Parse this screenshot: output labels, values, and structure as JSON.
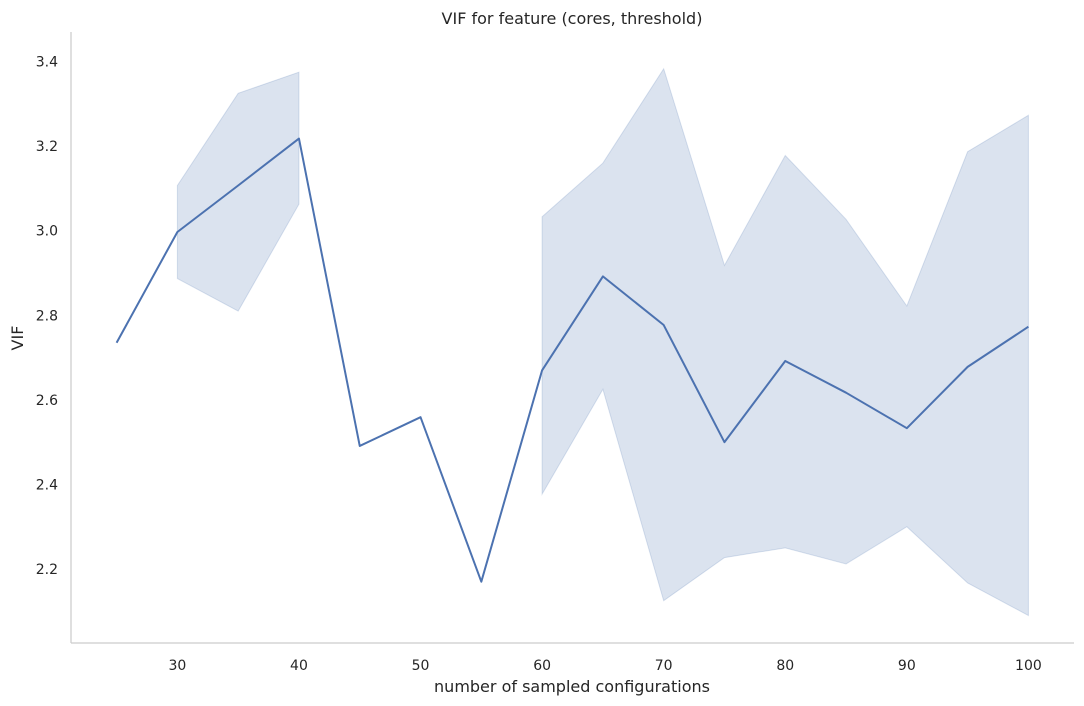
{
  "chart_data": {
    "type": "line",
    "title": "VIF for feature (cores, threshold)",
    "xlabel": "number of sampled configurations",
    "ylabel": "VIF",
    "xlim": [
      21.25,
      103.75
    ],
    "ylim": [
      2.025,
      3.47
    ],
    "xticks": [
      30,
      40,
      50,
      60,
      70,
      80,
      90,
      100
    ],
    "yticks": [
      2.2,
      2.4,
      2.6,
      2.8,
      3.0,
      3.2,
      3.4
    ],
    "ytick_labels": [
      "2.2",
      "2.4",
      "2.6",
      "2.8",
      "3.0",
      "3.2",
      "3.4"
    ],
    "grid": false,
    "series": [
      {
        "x": [
          25,
          30,
          35,
          40,
          45,
          50,
          55,
          60,
          65,
          70,
          75,
          80,
          85,
          90,
          95,
          100
        ],
        "values": [
          2.735,
          2.997,
          3.107,
          3.218,
          2.491,
          2.559,
          2.17,
          2.67,
          2.892,
          2.777,
          2.5,
          2.692,
          2.617,
          2.533,
          2.678,
          2.773
        ],
        "ci_lower": [
          null,
          2.887,
          2.81,
          3.063,
          null,
          null,
          null,
          2.377,
          2.625,
          2.125,
          2.227,
          2.25,
          2.212,
          2.3,
          2.167,
          2.09
        ],
        "ci_upper": [
          null,
          3.107,
          3.325,
          3.375,
          null,
          null,
          null,
          3.033,
          3.16,
          3.383,
          2.918,
          3.178,
          3.027,
          2.822,
          3.187,
          3.273
        ]
      }
    ],
    "colors": {
      "line": "#4c72b0",
      "band": "#4c72b0"
    }
  }
}
